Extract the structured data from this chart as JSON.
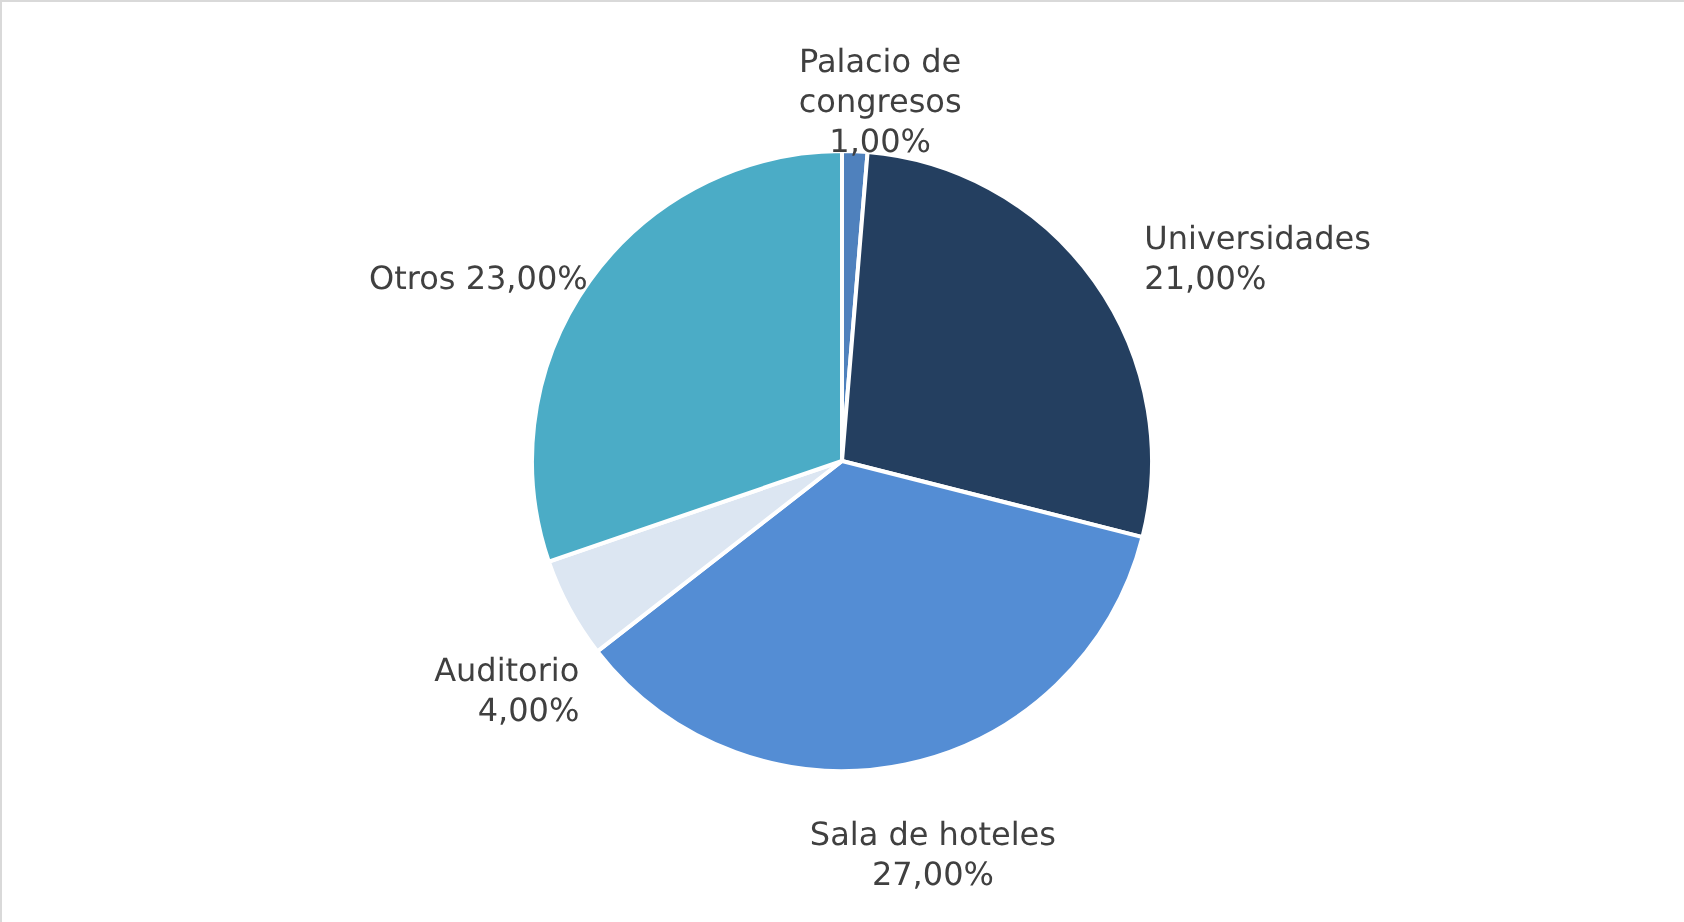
{
  "chart_data": {
    "type": "pie",
    "categories": [
      "Palacio de congresos",
      "Universidades",
      "Sala de hoteles",
      "Auditorio",
      "Otros"
    ],
    "values": [
      1,
      21,
      27,
      4,
      23
    ],
    "value_labels": [
      "1,00%",
      "21,00%",
      "27,00%",
      "4,00%",
      "23,00%"
    ],
    "colors": [
      "#4f81bd",
      "#243f60",
      "#548dd4",
      "#dce6f2",
      "#4bacc6"
    ]
  }
}
